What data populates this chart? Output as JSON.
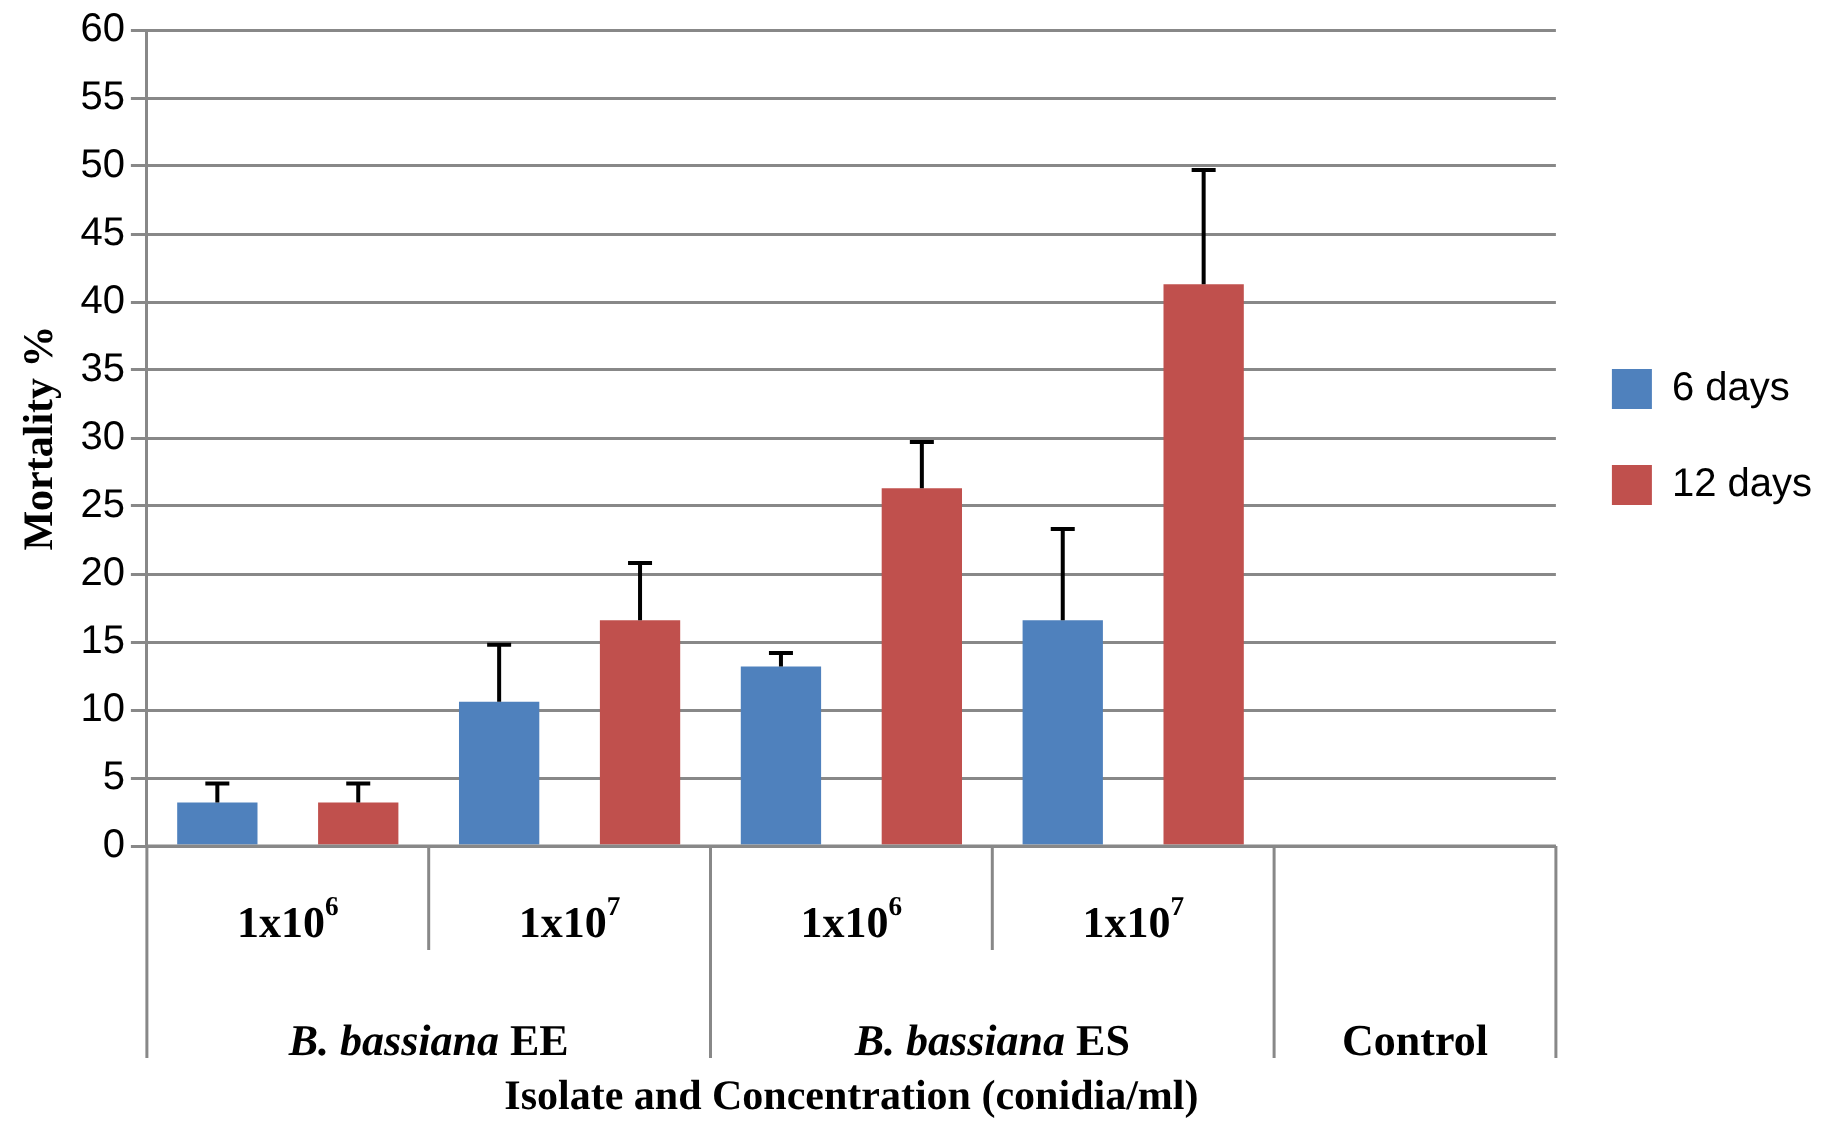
{
  "chart_data": {
    "type": "bar",
    "xlabel": "Isolate and Concentration (conidia/ml)",
    "ylabel": "Mortality %",
    "categories": [
      "1x10$^{6}$",
      "1x10$^{7}$",
      "1x10$^{6}$",
      "1x10$^{7}$",
      null
    ],
    "annotations": [
      "B. bassiana EE",
      "B. bassiana ES",
      "Control"
    ],
    "series": [
      {
        "name": "6 days",
        "color": "#4f81bd",
        "values": [
          3.2,
          10.6,
          13.2,
          16.6,
          0
        ],
        "errors": [
          [
            3.2,
            4.6
          ],
          [
            10.6,
            14.8
          ],
          [
            13.2,
            14.2
          ],
          [
            16.6,
            23.3
          ],
          null
        ]
      },
      {
        "name": "12 days",
        "color": "#c0504d",
        "values": [
          3.2,
          16.6,
          26.3,
          41.3,
          0
        ],
        "errors": [
          [
            3.2,
            4.6
          ],
          [
            16.6,
            20.8
          ],
          [
            26.3,
            29.7
          ],
          [
            41.3,
            49.7
          ],
          null
        ]
      }
    ],
    "ylim": [
      0,
      60
    ],
    "yticks": [
      0,
      5,
      10,
      15,
      20,
      25,
      30,
      35,
      40,
      45,
      50,
      55,
      60
    ],
    "grid": "y",
    "legend": "right"
  }
}
